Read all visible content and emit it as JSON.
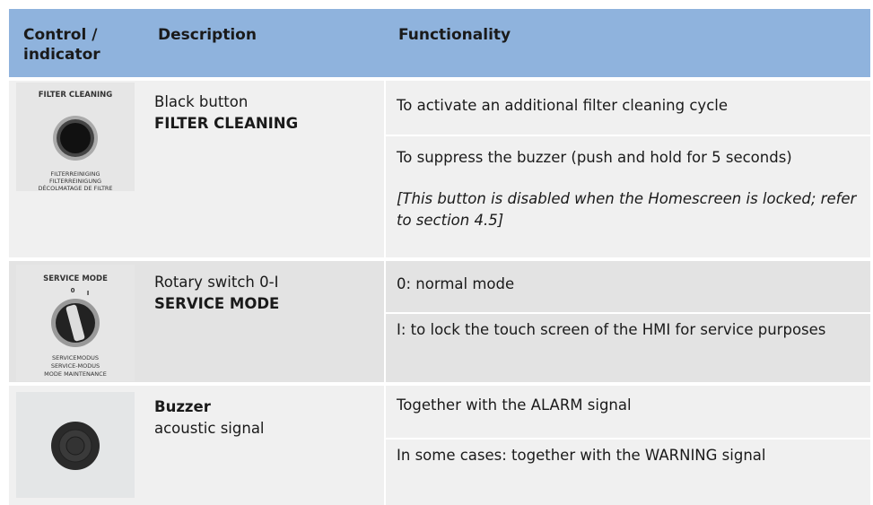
{
  "header": {
    "columns": [
      "Control / indicator",
      "Description",
      "Functionality"
    ]
  },
  "rows": [
    {
      "panel": {
        "title": "FILTER CLEANING",
        "labels": [
          "FILTERREINIGING",
          "FILTERREINIGUNG",
          "DÉCOLMATAGE DE FILTRE"
        ]
      },
      "description": [
        "Black button",
        "FILTER CLEANING"
      ],
      "functions": [
        {
          "text": "To activate an additional filter cleaning cycle"
        },
        {
          "text": "To suppress the buzzer (push and hold for 5 seconds)",
          "note": "[This button is disabled when the Homescreen is locked; refer to section 4.5]"
        }
      ]
    },
    {
      "panel": {
        "title": "SERVICE MODE",
        "positions": [
          "0",
          "I"
        ],
        "labels": [
          "SERVICEMODUS",
          "SERVICE-MODUS",
          "MODE MAINTENANCE"
        ]
      },
      "description": [
        "Rotary switch 0-I",
        "SERVICE MODE"
      ],
      "functions": [
        {
          "text": "0: normal mode"
        },
        {
          "text": "I: to lock the touch screen of the HMI for service purposes"
        }
      ]
    },
    {
      "description": [
        "Buzzer",
        "acoustic signal"
      ],
      "functions": [
        {
          "text": "Together with the ALARM signal"
        },
        {
          "text": "In some cases: together with the WARNING signal"
        }
      ]
    }
  ]
}
